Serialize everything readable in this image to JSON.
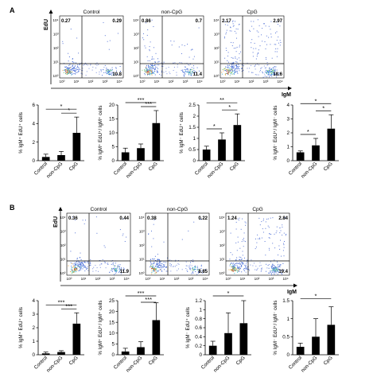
{
  "panels": [
    {
      "letter": "A",
      "flow_y_label": "EdU",
      "flow_x_label": "IgM",
      "flow_plots": [
        {
          "title": "Control",
          "q_ul": "0.27",
          "q_ur": "0.29",
          "q_lr": "10.8"
        },
        {
          "title": "non-CpG",
          "q_ul": "0.86",
          "q_ur": "0.7",
          "q_lr": "11.4"
        },
        {
          "title": "CpG",
          "q_ul": "2.17",
          "q_ur": "2.97",
          "q_lr": "18.6"
        }
      ]
    },
    {
      "letter": "B",
      "flow_y_label": "EdU",
      "flow_x_label": "IgM",
      "flow_plots": [
        {
          "title": "Control",
          "q_ul": "0.36",
          "q_ur": "0.44",
          "q_lr": "11.9"
        },
        {
          "title": "non-CpG",
          "q_ul": "0.38",
          "q_ur": "0.22",
          "q_lr": "8.85"
        },
        {
          "title": "CpG",
          "q_ul": "1.24",
          "q_ur": "2.84",
          "q_lr": "19.4"
        }
      ]
    }
  ],
  "flow_ticks": [
    "10⁰",
    "10¹",
    "10²",
    "10³",
    "10⁴"
  ],
  "chart_data": [
    {
      "type": "bar",
      "categories": [
        "Control",
        "non-CpG",
        "CpG"
      ],
      "values": [
        0.4,
        0.6,
        3.0
      ],
      "errors": [
        0.3,
        0.4,
        1.7
      ],
      "ylim": [
        0,
        6
      ],
      "yticks": [
        0,
        2,
        4,
        6
      ],
      "ylabel": "% IgM⁺ EdU⁺ cells",
      "sig": [
        {
          "from": 0,
          "to": 2,
          "label": "*"
        },
        {
          "from": 1,
          "to": 2,
          "label": "*"
        }
      ]
    },
    {
      "type": "bar",
      "categories": [
        "Control",
        "non-CpG",
        "CpG"
      ],
      "values": [
        3.0,
        4.5,
        13.5
      ],
      "errors": [
        1.5,
        1.5,
        4.5
      ],
      "ylim": [
        0,
        20
      ],
      "yticks": [
        0,
        5,
        10,
        15,
        20
      ],
      "ylabel": "% IgM⁺ EdU⁺/ IgM⁺ cells",
      "sig": [
        {
          "from": 0,
          "to": 2,
          "label": "***"
        },
        {
          "from": 1,
          "to": 2,
          "label": "***"
        }
      ]
    },
    {
      "type": "bar",
      "categories": [
        "Control",
        "non-CpG",
        "CpG"
      ],
      "values": [
        0.5,
        0.95,
        1.6
      ],
      "errors": [
        0.15,
        0.3,
        0.5
      ],
      "ylim": [
        0,
        2.5
      ],
      "yticks": [
        0,
        0.5,
        1,
        1.5,
        2,
        2.5
      ],
      "ylabel": "% IgM⁻ EdU⁺ cells",
      "sig": [
        {
          "from": 0,
          "to": 2,
          "label": "**"
        },
        {
          "from": 0,
          "to": 1,
          "label": "*"
        },
        {
          "from": 1,
          "to": 2,
          "label": "*"
        }
      ]
    },
    {
      "type": "bar",
      "categories": [
        "Control",
        "non-CpG",
        "CpG"
      ],
      "values": [
        0.6,
        1.1,
        2.3
      ],
      "errors": [
        0.1,
        0.5,
        1.0
      ],
      "ylim": [
        0,
        4
      ],
      "yticks": [
        0,
        1,
        2,
        3,
        4
      ],
      "ylabel": "% IgM⁻ EdU⁺/ IgM⁻ cells",
      "sig": [
        {
          "from": 0,
          "to": 2,
          "label": "*"
        },
        {
          "from": 0,
          "to": 1,
          "label": "*"
        },
        {
          "from": 1,
          "to": 2,
          "label": "*"
        }
      ]
    },
    {
      "type": "bar",
      "categories": [
        "Control",
        "non-CpG",
        "CpG"
      ],
      "values": [
        0.1,
        0.2,
        2.3
      ],
      "errors": [
        0.1,
        0.1,
        0.8
      ],
      "ylim": [
        0,
        4
      ],
      "yticks": [
        0,
        1,
        2,
        3,
        4
      ],
      "ylabel": "% IgM⁺ EdU⁺ cells",
      "sig": [
        {
          "from": 0,
          "to": 2,
          "label": "***"
        },
        {
          "from": 1,
          "to": 2,
          "label": "***"
        }
      ]
    },
    {
      "type": "bar",
      "categories": [
        "Control",
        "non-CpG",
        "CpG"
      ],
      "values": [
        1.5,
        3.5,
        16.0
      ],
      "errors": [
        1.5,
        2.5,
        8.0
      ],
      "ylim": [
        0,
        25
      ],
      "yticks": [
        0,
        5,
        10,
        15,
        20,
        25
      ],
      "ylabel": "% IgM⁺ EdU⁺/ IgM⁺ cells",
      "sig": [
        {
          "from": 0,
          "to": 2,
          "label": "***"
        },
        {
          "from": 1,
          "to": 2,
          "label": "***"
        }
      ]
    },
    {
      "type": "bar",
      "categories": [
        "Control",
        "non-CpG",
        "CpG"
      ],
      "values": [
        0.2,
        0.48,
        0.7
      ],
      "errors": [
        0.1,
        0.45,
        0.5
      ],
      "ylim": [
        0,
        1.2
      ],
      "yticks": [
        0,
        0.2,
        0.4,
        0.6,
        0.8,
        1,
        1.2
      ],
      "ylabel": "% IgM⁻ EdU⁺ cells",
      "sig": [
        {
          "from": 0,
          "to": 2,
          "label": "*"
        }
      ]
    },
    {
      "type": "bar",
      "categories": [
        "Control",
        "non-CpG",
        "CpG"
      ],
      "values": [
        0.22,
        0.5,
        0.83
      ],
      "errors": [
        0.1,
        0.5,
        0.5
      ],
      "ylim": [
        0,
        1.5
      ],
      "yticks": [
        0,
        0.5,
        1,
        1.5
      ],
      "ylabel": "% IgM⁻ EdU⁺/ IgM⁻ cells",
      "sig": [
        {
          "from": 0,
          "to": 2,
          "label": "*"
        }
      ]
    }
  ]
}
